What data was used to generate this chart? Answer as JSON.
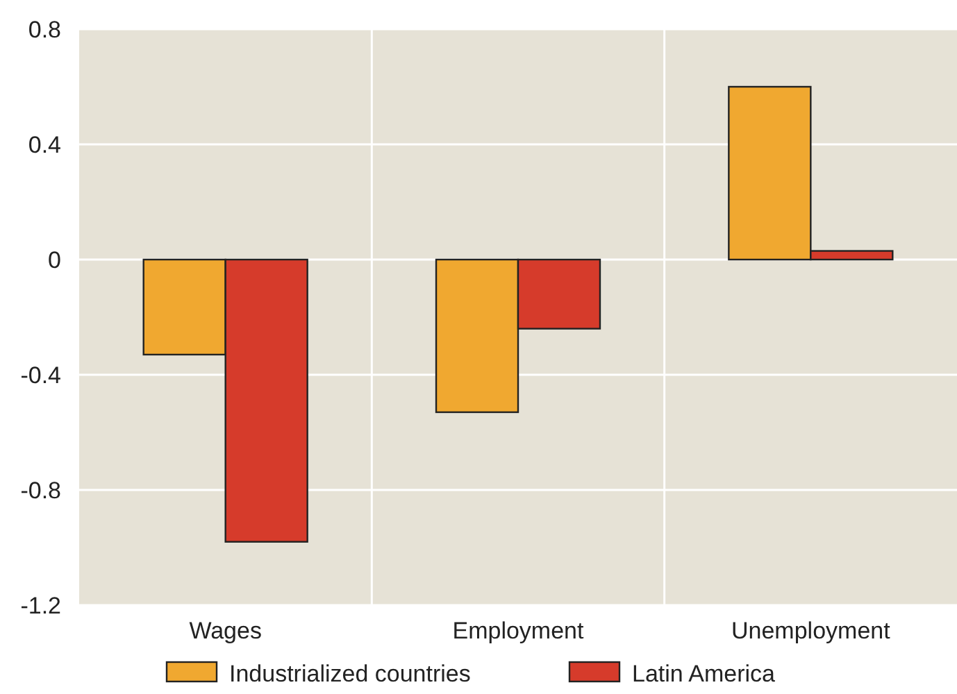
{
  "chart_data": {
    "type": "bar",
    "categories": [
      "Wages",
      "Employment",
      "Unemployment"
    ],
    "series": [
      {
        "name": "Industrialized countries",
        "color": "#f0a830",
        "values": [
          -0.33,
          -0.53,
          0.6
        ]
      },
      {
        "name": "Latin America",
        "color": "#d63b2b",
        "values": [
          -0.98,
          -0.24,
          0.03
        ]
      }
    ],
    "ylim": [
      -1.2,
      0.8
    ],
    "yticks": [
      {
        "value": -1.2,
        "label": "-1.2"
      },
      {
        "value": -0.8,
        "label": "-0.8"
      },
      {
        "value": -0.4,
        "label": "-0.4"
      },
      0,
      {
        "value": 0.4,
        "label": "0.4"
      },
      {
        "value": 0.8,
        "label": "0.8"
      }
    ],
    "grid": true,
    "legend": "bottom"
  }
}
